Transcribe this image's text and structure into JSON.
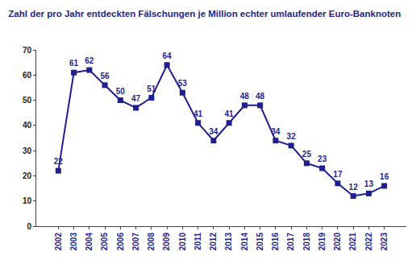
{
  "chart_data": {
    "type": "line",
    "title": "Zahl der pro Jahr entdeckten Fälschungen je Million echter umlaufender Euro-Banknoten",
    "categories": [
      "2002",
      "2003",
      "2004",
      "2005",
      "2006",
      "2007",
      "2008",
      "2009",
      "2010",
      "2011",
      "2012",
      "2013",
      "2014",
      "2015",
      "2016",
      "2017",
      "2018",
      "2019",
      "2020",
      "2021",
      "2022",
      "2023"
    ],
    "values": [
      22,
      61,
      62,
      56,
      50,
      47,
      51,
      64,
      53,
      41,
      34,
      41,
      48,
      48,
      34,
      32,
      25,
      23,
      17,
      12,
      13,
      16
    ],
    "color": "#1f1f8f",
    "marker": "square",
    "ylim": [
      0,
      70
    ],
    "yticks": [
      0,
      10,
      20,
      30,
      40,
      50,
      60,
      70
    ],
    "grid": false,
    "data_labels": true
  }
}
